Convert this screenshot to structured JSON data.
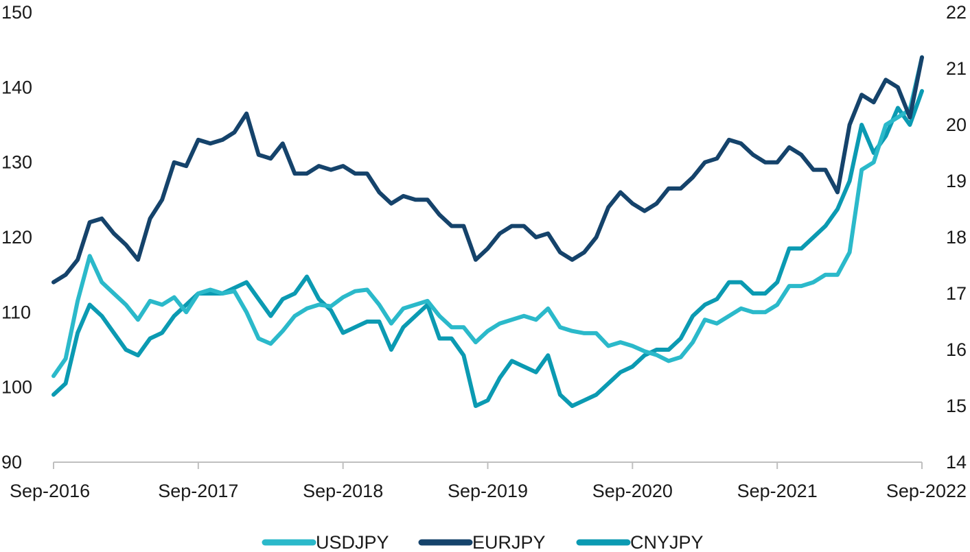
{
  "chart_data": {
    "type": "line",
    "title": "",
    "xlabel": "",
    "ylabel": "",
    "x_range": [
      "2016-09-01",
      "2022-09-01"
    ],
    "x_ticks": [
      "Sep-2016",
      "Sep-2017",
      "Sep-2018",
      "Sep-2019",
      "Sep-2020",
      "Sep-2021",
      "Sep-2022"
    ],
    "y_left": {
      "min": 90,
      "max": 150,
      "ticks": [
        "90",
        "100",
        "110",
        "120",
        "130",
        "140",
        "150"
      ]
    },
    "y_right": {
      "min": 14,
      "max": 22,
      "ticks": [
        "14",
        "15",
        "16",
        "17",
        "18",
        "19",
        "20",
        "21",
        "22"
      ]
    },
    "grid": false,
    "legend": "bottom",
    "series": [
      {
        "name": "USDJPY",
        "axis": "left",
        "color": "#2bb9ca",
        "x": [
          "2016-09",
          "2016-10",
          "2016-11",
          "2016-12",
          "2017-01",
          "2017-02",
          "2017-03",
          "2017-04",
          "2017-05",
          "2017-06",
          "2017-07",
          "2017-08",
          "2017-09",
          "2017-10",
          "2017-11",
          "2017-12",
          "2018-01",
          "2018-02",
          "2018-03",
          "2018-04",
          "2018-05",
          "2018-06",
          "2018-07",
          "2018-08",
          "2018-09",
          "2018-10",
          "2018-11",
          "2018-12",
          "2019-01",
          "2019-02",
          "2019-03",
          "2019-04",
          "2019-05",
          "2019-06",
          "2019-07",
          "2019-08",
          "2019-09",
          "2019-10",
          "2019-11",
          "2019-12",
          "2020-01",
          "2020-02",
          "2020-03",
          "2020-04",
          "2020-05",
          "2020-06",
          "2020-07",
          "2020-08",
          "2020-09",
          "2020-10",
          "2020-11",
          "2020-12",
          "2021-01",
          "2021-02",
          "2021-03",
          "2021-04",
          "2021-05",
          "2021-06",
          "2021-07",
          "2021-08",
          "2021-09",
          "2021-10",
          "2021-11",
          "2021-12",
          "2022-01",
          "2022-02",
          "2022-03",
          "2022-04",
          "2022-05",
          "2022-06",
          "2022-07",
          "2022-08",
          "2022-09"
        ],
        "values": [
          101.5,
          103.8,
          111.5,
          117.5,
          114,
          112.5,
          111,
          109,
          111.5,
          111,
          112,
          110,
          112.5,
          113,
          112.5,
          112.8,
          110,
          106.5,
          105.8,
          107.5,
          109.5,
          110.5,
          111,
          110.8,
          112,
          112.8,
          113,
          111,
          108.5,
          110.5,
          111,
          111.5,
          109.5,
          108,
          108,
          106,
          107.5,
          108.5,
          109,
          109.5,
          109,
          110.5,
          108,
          107.5,
          107.2,
          107.2,
          105.5,
          106,
          105.5,
          104.8,
          104.3,
          103.5,
          104,
          106,
          109,
          108.5,
          109.5,
          110.5,
          110,
          110,
          111,
          113.5,
          113.5,
          114,
          115,
          115,
          118,
          129,
          130,
          135,
          136,
          137,
          144
        ]
      },
      {
        "name": "EURJPY",
        "axis": "left",
        "color": "#15436b",
        "x": [
          "2016-09",
          "2016-10",
          "2016-11",
          "2016-12",
          "2017-01",
          "2017-02",
          "2017-03",
          "2017-04",
          "2017-05",
          "2017-06",
          "2017-07",
          "2017-08",
          "2017-09",
          "2017-10",
          "2017-11",
          "2017-12",
          "2018-01",
          "2018-02",
          "2018-03",
          "2018-04",
          "2018-05",
          "2018-06",
          "2018-07",
          "2018-08",
          "2018-09",
          "2018-10",
          "2018-11",
          "2018-12",
          "2019-01",
          "2019-02",
          "2019-03",
          "2019-04",
          "2019-05",
          "2019-06",
          "2019-07",
          "2019-08",
          "2019-09",
          "2019-10",
          "2019-11",
          "2019-12",
          "2020-01",
          "2020-02",
          "2020-03",
          "2020-04",
          "2020-05",
          "2020-06",
          "2020-07",
          "2020-08",
          "2020-09",
          "2020-10",
          "2020-11",
          "2020-12",
          "2021-01",
          "2021-02",
          "2021-03",
          "2021-04",
          "2021-05",
          "2021-06",
          "2021-07",
          "2021-08",
          "2021-09",
          "2021-10",
          "2021-11",
          "2021-12",
          "2022-01",
          "2022-02",
          "2022-03",
          "2022-04",
          "2022-05",
          "2022-06",
          "2022-07",
          "2022-08",
          "2022-09"
        ],
        "values": [
          114,
          115,
          117,
          122,
          122.5,
          120.5,
          119,
          117,
          122.5,
          125,
          130,
          129.5,
          133,
          132.5,
          133,
          134,
          136.5,
          131,
          130.5,
          132.5,
          128.5,
          128.5,
          129.5,
          129,
          129.5,
          128.5,
          128.5,
          126,
          124.5,
          125.5,
          125,
          125,
          123,
          121.5,
          121.5,
          117,
          118.5,
          120.5,
          121.5,
          121.5,
          120,
          120.5,
          118,
          117,
          118,
          120,
          124,
          126,
          124.5,
          123.5,
          124.5,
          126.5,
          126.5,
          128,
          130,
          130.5,
          133,
          132.5,
          131,
          130,
          130,
          132,
          131,
          129,
          129,
          126,
          135,
          139,
          138,
          141,
          140,
          136,
          144
        ]
      },
      {
        "name": "CNYJPY",
        "axis": "right",
        "color": "#0b9ab2",
        "x": [
          "2016-09",
          "2016-10",
          "2016-11",
          "2016-12",
          "2017-01",
          "2017-02",
          "2017-03",
          "2017-04",
          "2017-05",
          "2017-06",
          "2017-07",
          "2017-08",
          "2017-09",
          "2017-10",
          "2017-11",
          "2017-12",
          "2018-01",
          "2018-02",
          "2018-03",
          "2018-04",
          "2018-05",
          "2018-06",
          "2018-07",
          "2018-08",
          "2018-09",
          "2018-10",
          "2018-11",
          "2018-12",
          "2019-01",
          "2019-02",
          "2019-03",
          "2019-04",
          "2019-05",
          "2019-06",
          "2019-07",
          "2019-08",
          "2019-09",
          "2019-10",
          "2019-11",
          "2019-12",
          "2020-01",
          "2020-02",
          "2020-03",
          "2020-04",
          "2020-05",
          "2020-06",
          "2020-07",
          "2020-08",
          "2020-09",
          "2020-10",
          "2020-11",
          "2020-12",
          "2021-01",
          "2021-02",
          "2021-03",
          "2021-04",
          "2021-05",
          "2021-06",
          "2021-07",
          "2021-08",
          "2021-09",
          "2021-10",
          "2021-11",
          "2021-12",
          "2022-01",
          "2022-02",
          "2022-03",
          "2022-04",
          "2022-05",
          "2022-06",
          "2022-07",
          "2022-08",
          "2022-09"
        ],
        "values": [
          15.2,
          15.4,
          16.3,
          16.8,
          16.6,
          16.3,
          16.0,
          15.9,
          16.2,
          16.3,
          16.6,
          16.8,
          17.0,
          17.0,
          17.0,
          17.1,
          17.2,
          16.9,
          16.6,
          16.9,
          17.0,
          17.3,
          16.9,
          16.7,
          16.3,
          16.4,
          16.5,
          16.5,
          16.0,
          16.4,
          16.6,
          16.8,
          16.2,
          16.2,
          15.9,
          15.0,
          15.1,
          15.5,
          15.8,
          15.7,
          15.6,
          15.9,
          15.2,
          15.0,
          15.1,
          15.2,
          15.4,
          15.6,
          15.7,
          15.9,
          16.0,
          16.0,
          16.2,
          16.6,
          16.8,
          16.9,
          17.2,
          17.2,
          17.0,
          17.0,
          17.2,
          17.8,
          17.8,
          18.0,
          18.2,
          18.5,
          19.0,
          20.0,
          19.5,
          19.8,
          20.3,
          20.0,
          20.6
        ]
      }
    ]
  }
}
